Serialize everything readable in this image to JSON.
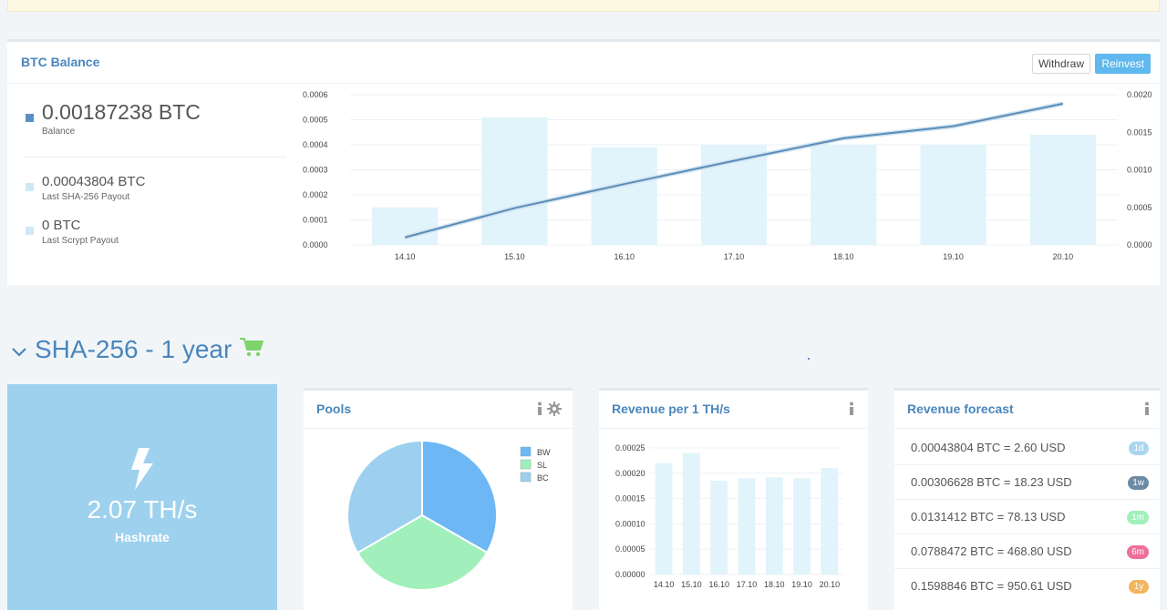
{
  "balance_panel": {
    "title": "BTC Balance",
    "withdraw_label": "Withdraw",
    "reinvest_label": "Reinvest",
    "balance": {
      "value": "0.00187238 BTC",
      "label": "Balance",
      "color": "#5b8fc4"
    },
    "last_sha256": {
      "value": "0.00043804 BTC",
      "label": "Last SHA-256 Payout",
      "color": "#cfe9f6"
    },
    "last_scrypt": {
      "value": "0 BTC",
      "label": "Last Scrypt Payout",
      "color": "#cfe9f6"
    }
  },
  "chart_data": [
    {
      "type": "bar",
      "categories": [
        "14.10",
        "15.10",
        "16.10",
        "17.10",
        "18.10",
        "19.10",
        "20.10"
      ],
      "series": [
        {
          "values": [
            0.00015,
            0.00051,
            0.00039,
            0.0004,
            0.0004,
            0.0004,
            0.00044
          ],
          "axis": "left",
          "type": "bar",
          "color": "#e1f3fb"
        },
        {
          "values": [
            0.0001,
            0.00049,
            0.00081,
            0.00112,
            0.00142,
            0.00158,
            0.00188
          ],
          "axis": "right",
          "type": "line",
          "color": "#5a8db8"
        }
      ],
      "ylim_left": [
        0,
        0.0006
      ],
      "ylim_right": [
        0,
        0.002
      ],
      "yticks_left": [
        "0.0000",
        "0.0001",
        "0.0002",
        "0.0003",
        "0.0004",
        "0.0005",
        "0.0006"
      ],
      "yticks_right": [
        "0.0000",
        "0.0005",
        "0.0010",
        "0.0015",
        "0.0020"
      ],
      "grid": true
    },
    {
      "type": "pie",
      "labels": [
        "BW",
        "SL",
        "BC"
      ],
      "values": [
        33.3,
        33.3,
        33.4
      ],
      "colors": [
        "#6db7f5",
        "#a1f0bb",
        "#9dcfef"
      ],
      "legend": "top-right"
    },
    {
      "type": "bar",
      "categories": [
        "14.10",
        "15.10",
        "16.10",
        "17.10",
        "18.10",
        "19.10",
        "20.10"
      ],
      "values": [
        0.00022,
        0.00024,
        0.000185,
        0.00019,
        0.000192,
        0.00019,
        0.00021
      ],
      "ylim": [
        0,
        0.00025
      ],
      "yticks": [
        "0.00000",
        "0.00005",
        "0.00010",
        "0.00015",
        "0.00020",
        "0.00025"
      ],
      "color": "#e1f3fb"
    }
  ],
  "section": {
    "title": "SHA-256 - 1 year"
  },
  "hashrate": {
    "value": "2.07 TH/s",
    "label": "Hashrate"
  },
  "pools": {
    "title": "Pools"
  },
  "revenue": {
    "title": "Revenue per 1 TH/s"
  },
  "forecast": {
    "title": "Revenue forecast",
    "rows": [
      {
        "text": "0.00043804 BTC = 2.60 USD",
        "badge": "1d",
        "color": "#a9d6f0"
      },
      {
        "text": "0.00306628 BTC = 18.23 USD",
        "badge": "1w",
        "color": "#6d8aa3"
      },
      {
        "text": "0.0131412 BTC = 78.13 USD",
        "badge": "1m",
        "color": "#9ff0b9"
      },
      {
        "text": "0.0788472 BTC = 468.80 USD",
        "badge": "6m",
        "color": "#ef6f9a"
      },
      {
        "text": "0.1598846 BTC = 950.61 USD",
        "badge": "1y",
        "color": "#f3b55f"
      }
    ]
  }
}
